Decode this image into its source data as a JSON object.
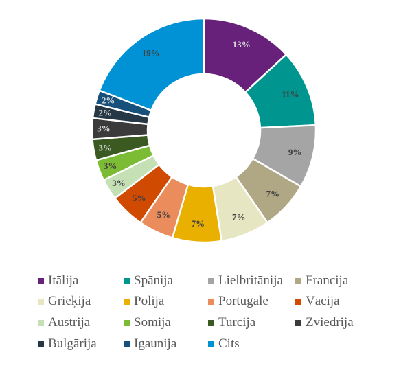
{
  "chart_data": {
    "type": "pie",
    "subtype": "donut",
    "title": "",
    "categories": [
      "Itālija",
      "Spānija",
      "Lielbritānija",
      "Francija",
      "Grieķija",
      "Polija",
      "Portugāle",
      "Vācija",
      "Austrija",
      "Somija",
      "Turcija",
      "Zviedrija",
      "Bulgārija",
      "Igaunija",
      "Cits"
    ],
    "values": [
      13,
      11,
      9,
      7,
      7,
      7,
      5,
      5,
      3,
      3,
      3,
      3,
      2,
      2,
      19
    ],
    "labels": [
      "13%",
      "11%",
      "9%",
      "7%",
      "7%",
      "7%",
      "5%",
      "5%",
      "3%",
      "3%",
      "3%",
      "3%",
      "2%",
      "2%",
      "19%"
    ],
    "colors": [
      "#68217a",
      "#00968f",
      "#a5a5a5",
      "#b0a785",
      "#e6e6c3",
      "#e9b000",
      "#eb8c5d",
      "#d04a02",
      "#c5e0b4",
      "#7cbb34",
      "#3a5a22",
      "#3b3b3b",
      "#263746",
      "#17507a",
      "#0092d4"
    ],
    "label_colors": [
      "#d9d9d9",
      "#404040",
      "#404040",
      "#404040",
      "#404040",
      "#404040",
      "#404040",
      "#404040",
      "#404040",
      "#404040",
      "#d9d9d9",
      "#d9d9d9",
      "#d9d9d9",
      "#d9d9d9",
      "#404040"
    ],
    "start_angle_deg": 0,
    "direction": "clockwise",
    "legend_position": "bottom",
    "unit": "%"
  },
  "legend": {
    "items": [
      {
        "label": "Itālija",
        "color": "#68217a"
      },
      {
        "label": "Spānija",
        "color": "#00968f"
      },
      {
        "label": "Lielbritānija",
        "color": "#a5a5a5"
      },
      {
        "label": "Francija",
        "color": "#b0a785"
      },
      {
        "label": "Grieķija",
        "color": "#e6e6c3"
      },
      {
        "label": "Polija",
        "color": "#e9b000"
      },
      {
        "label": "Portugāle",
        "color": "#eb8c5d"
      },
      {
        "label": "Vācija",
        "color": "#d04a02"
      },
      {
        "label": "Austrija",
        "color": "#c5e0b4"
      },
      {
        "label": "Somija",
        "color": "#7cbb34"
      },
      {
        "label": "Turcija",
        "color": "#3a5a22"
      },
      {
        "label": "Zviedrija",
        "color": "#3b3b3b"
      },
      {
        "label": "Bulgārija",
        "color": "#263746"
      },
      {
        "label": "Igaunija",
        "color": "#17507a"
      },
      {
        "label": "Cits",
        "color": "#0092d4"
      }
    ]
  }
}
